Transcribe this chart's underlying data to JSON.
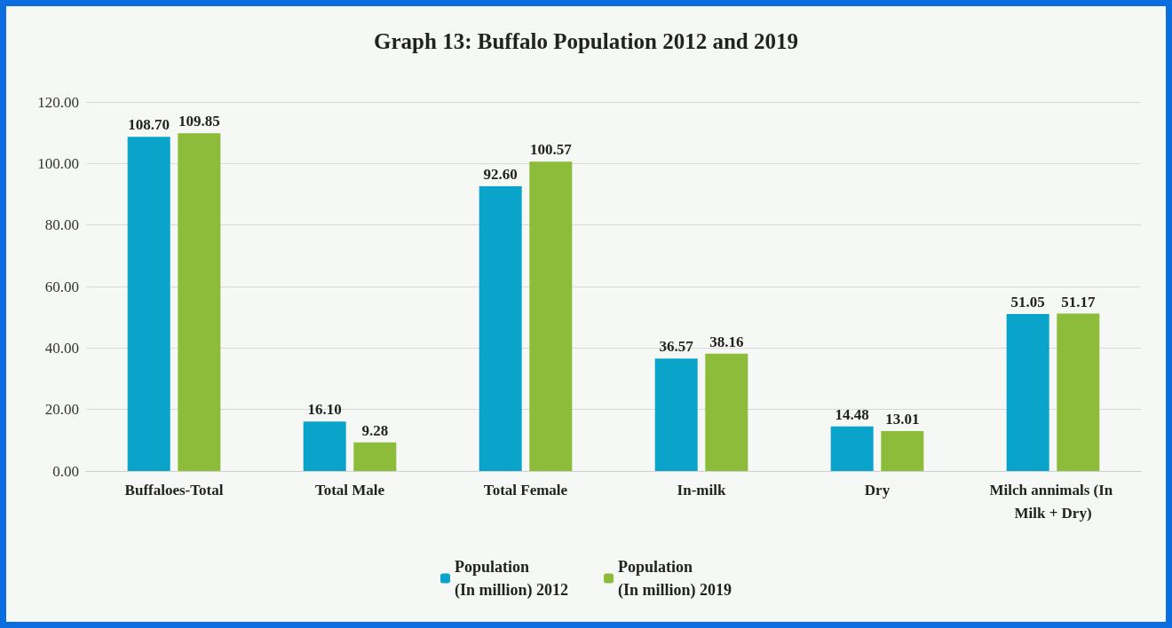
{
  "chart_data": {
    "type": "bar",
    "title": "Graph 13: Buffalo Population 2012 and 2019",
    "categories": [
      "Buffaloes-Total",
      "Total Male",
      "Total Female",
      "In-milk",
      "Dry",
      "Milch annimals (In Milk + Dry)"
    ],
    "series": [
      {
        "name": "Population\n(In million) 2012",
        "color": "#0aa3c9",
        "values": [
          108.7,
          16.1,
          92.6,
          36.57,
          14.48,
          51.05
        ],
        "value_labels": [
          "108.70",
          "16.10",
          "92.60",
          "36.57",
          "14.48",
          "51.05"
        ]
      },
      {
        "name": "Population\n(In million) 2019",
        "color": "#8dbb3a",
        "values": [
          109.85,
          9.28,
          100.57,
          38.16,
          13.01,
          51.17
        ],
        "value_labels": [
          "109.85",
          "9.28",
          "100.57",
          "38.16",
          "13.01",
          "51.17"
        ]
      }
    ],
    "ylim": [
      0,
      120
    ],
    "yticks": [
      {
        "value": 0,
        "label": "0.00"
      },
      {
        "value": 20,
        "label": "20.00"
      },
      {
        "value": 40,
        "label": "40.00"
      },
      {
        "value": 60,
        "label": "60.00"
      },
      {
        "value": 80,
        "label": "80.00"
      },
      {
        "value": 100,
        "label": "100.00"
      },
      {
        "value": 120,
        "label": "120.00"
      }
    ],
    "grid": "y",
    "legend": "bottom"
  }
}
